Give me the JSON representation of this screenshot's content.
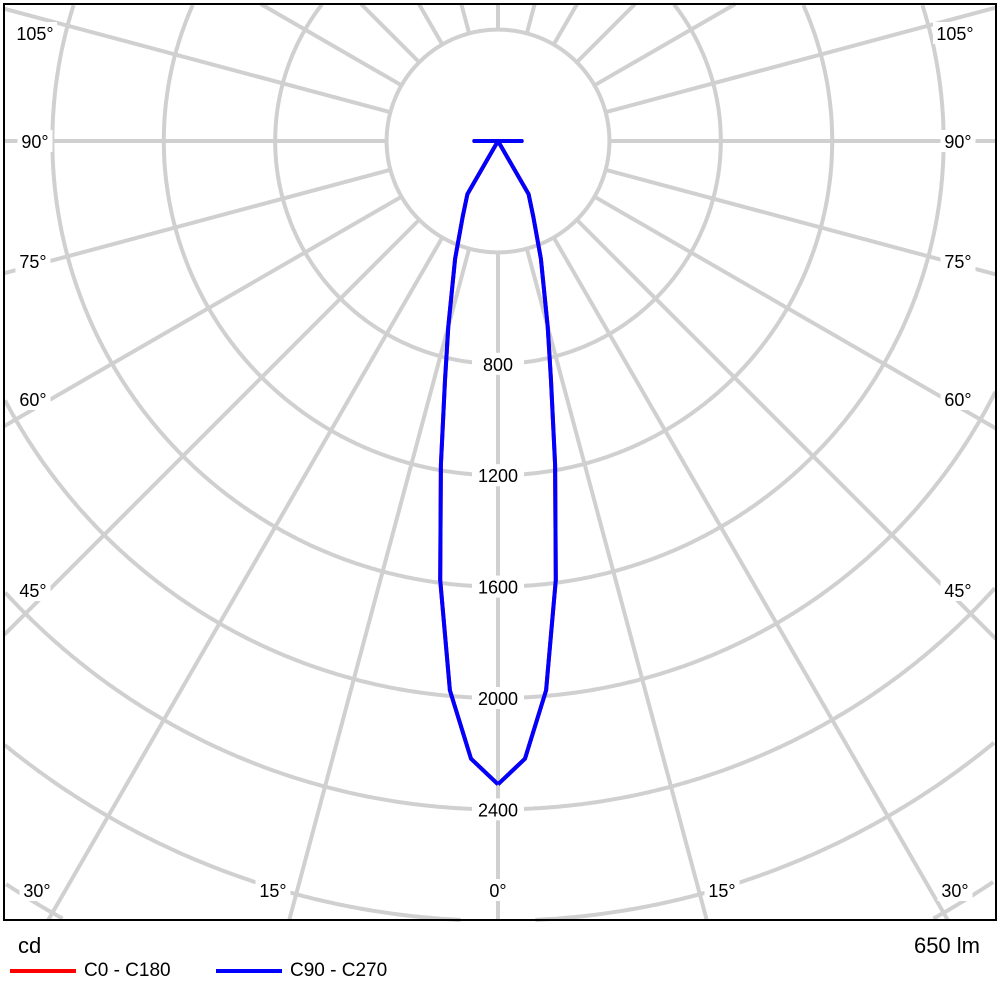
{
  "chart_data": {
    "type": "polar",
    "unit_label": "cd",
    "flux_label": "650 lm",
    "radial_ticks": [
      800,
      1200,
      1600,
      2000,
      2400
    ],
    "radial_ring_step": 400,
    "angle_step": 15,
    "angle_labels_left": [
      "105°",
      "90°",
      "75°",
      "60°",
      "45°",
      "30°",
      "15°"
    ],
    "angle_labels_right": [
      "105°",
      "90°",
      "75°",
      "60°",
      "45°",
      "30°",
      "15°"
    ],
    "angle_label_bottom": "0°",
    "grid": true,
    "legend_placement": "bottom-left",
    "angles": [
      0,
      2.5,
      5,
      7.5,
      10,
      12.5,
      15,
      20,
      25,
      30,
      35,
      90,
      95
    ],
    "series": [
      {
        "name": "C0 - C180",
        "color": "#ff0000",
        "values": [
          2310,
          2220,
          1980,
          1590,
          1180,
          880,
          690,
          450,
          300,
          220,
          0,
          85,
          0
        ]
      },
      {
        "name": "C90 - C270",
        "color": "#0000ff",
        "values": [
          2310,
          2220,
          1980,
          1590,
          1180,
          880,
          690,
          450,
          300,
          220,
          0,
          85,
          0
        ]
      }
    ]
  }
}
